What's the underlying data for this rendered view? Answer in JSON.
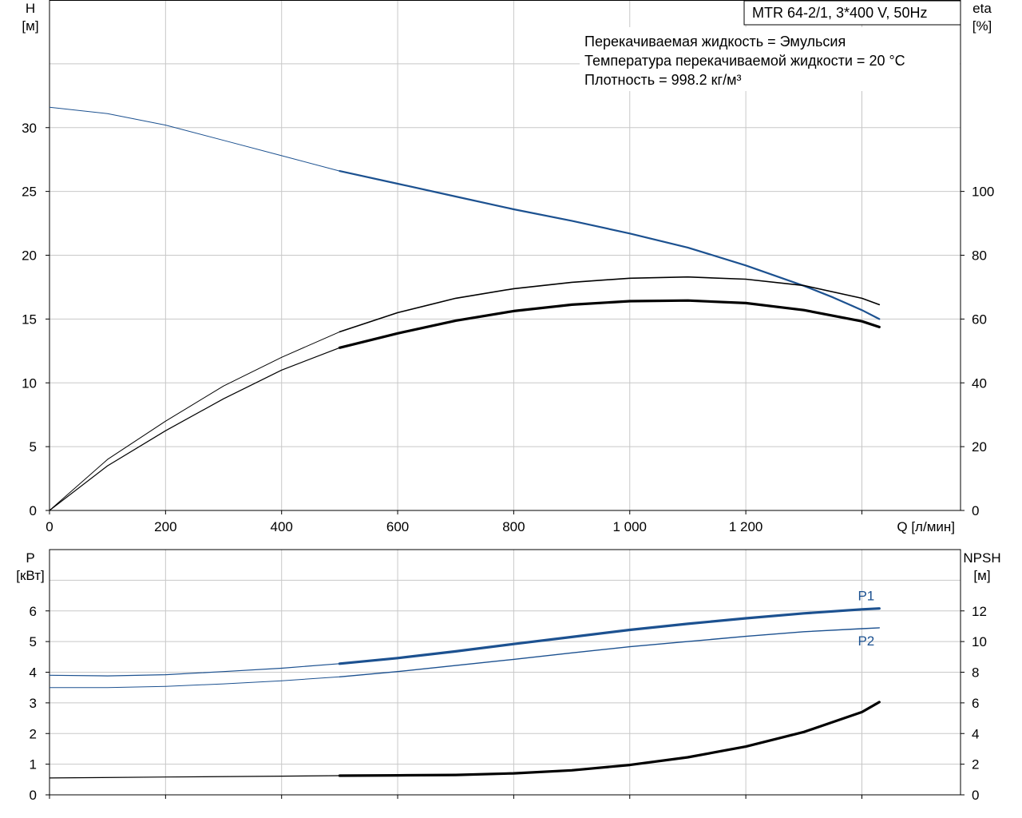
{
  "title": "MTR 64-2/1, 3*400 V, 50Hz",
  "info_lines": [
    "Перекачиваемая жидкость = Эмульсия",
    "Температура перекачиваемой жидкости = 20 °C",
    "Плотность = 998.2 кг/м³"
  ],
  "colors": {
    "blue": "#1c5190",
    "black": "#000000",
    "grid": "#c8c8c8"
  },
  "chart_data": [
    {
      "type": "line",
      "panel": "top",
      "xlabel": "Q [л/мин]",
      "ylabel_left": [
        "H",
        "[м]"
      ],
      "ylabel_right": [
        "eta",
        "[%]"
      ],
      "xlim": [
        0,
        1570
      ],
      "ylim_left": [
        0,
        40
      ],
      "ylim_right": [
        0,
        160
      ],
      "x_ticks": [
        0,
        200,
        400,
        600,
        800,
        1000,
        1200
      ],
      "x_tick_labels": [
        "0",
        "200",
        "400",
        "600",
        "800",
        "1 000",
        "1 200"
      ],
      "y_ticks_left": [
        0,
        5,
        10,
        15,
        20,
        25,
        30
      ],
      "y_ticks_right": [
        0,
        20,
        40,
        60,
        80,
        100
      ],
      "grid": true,
      "duty_range": [
        500,
        1430
      ],
      "series": [
        {
          "axis": "left",
          "color": "#1c5190",
          "style": "blue",
          "x": [
            0,
            100,
            200,
            300,
            400,
            500,
            600,
            700,
            800,
            900,
            1000,
            1100,
            1200,
            1300,
            1350,
            1400,
            1430
          ],
          "y": [
            31.6,
            31.1,
            30.2,
            29.0,
            27.8,
            26.6,
            25.6,
            24.6,
            23.6,
            22.7,
            21.7,
            20.6,
            19.2,
            17.6,
            16.7,
            15.7,
            15.0
          ]
        },
        {
          "axis": "right",
          "color": "#000000",
          "style": "black-thin",
          "x": [
            0,
            100,
            200,
            300,
            400,
            500,
            600,
            700,
            800,
            900,
            1000,
            1100,
            1200,
            1300,
            1400,
            1430
          ],
          "y": [
            0,
            16,
            28,
            39,
            48,
            56,
            62,
            66.5,
            69.5,
            71.5,
            72.8,
            73.2,
            72.5,
            70.5,
            66.5,
            64.5
          ]
        },
        {
          "axis": "right",
          "color": "#000000",
          "style": "black-thick",
          "x": [
            0,
            100,
            200,
            300,
            400,
            500,
            600,
            700,
            800,
            900,
            1000,
            1100,
            1200,
            1300,
            1400,
            1430
          ],
          "y": [
            0,
            14,
            25,
            35,
            44,
            51,
            55.5,
            59.5,
            62.5,
            64.5,
            65.6,
            65.8,
            65.0,
            62.8,
            59.3,
            57.5
          ]
        }
      ]
    },
    {
      "type": "line",
      "panel": "bottom",
      "ylabel_left": [
        "P",
        "[кВт]"
      ],
      "ylabel_right": [
        "NPSH",
        "[м]"
      ],
      "xlim": [
        0,
        1570
      ],
      "ylim_left": [
        0,
        8
      ],
      "ylim_right": [
        0,
        16
      ],
      "y_ticks_left": [
        0,
        1,
        2,
        3,
        4,
        5,
        6
      ],
      "y_ticks_right": [
        0,
        2,
        4,
        6,
        8,
        10,
        12
      ],
      "grid": true,
      "duty_range": [
        500,
        1430
      ],
      "series": [
        {
          "name": "P1",
          "axis": "left",
          "color": "#1c5190",
          "style": "blue-thick",
          "x": [
            0,
            100,
            200,
            300,
            400,
            500,
            600,
            700,
            800,
            900,
            1000,
            1100,
            1200,
            1300,
            1400,
            1430
          ],
          "y": [
            3.9,
            3.88,
            3.92,
            4.02,
            4.13,
            4.28,
            4.46,
            4.68,
            4.92,
            5.15,
            5.38,
            5.58,
            5.76,
            5.92,
            6.05,
            6.08
          ]
        },
        {
          "name": "P2",
          "axis": "left",
          "color": "#1c5190",
          "style": "blue-thin",
          "x": [
            0,
            100,
            200,
            300,
            400,
            500,
            600,
            700,
            800,
            900,
            1000,
            1100,
            1200,
            1300,
            1400,
            1430
          ],
          "y": [
            3.5,
            3.5,
            3.54,
            3.62,
            3.72,
            3.85,
            4.02,
            4.22,
            4.42,
            4.63,
            4.83,
            5.0,
            5.17,
            5.32,
            5.42,
            5.45
          ]
        },
        {
          "axis": "right",
          "color": "#000000",
          "style": "black-thick",
          "x": [
            0,
            200,
            400,
            500,
            600,
            700,
            800,
            900,
            1000,
            1100,
            1200,
            1300,
            1400,
            1430
          ],
          "y": [
            1.1,
            1.16,
            1.22,
            1.25,
            1.27,
            1.3,
            1.4,
            1.6,
            1.95,
            2.45,
            3.15,
            4.1,
            5.4,
            6.05
          ]
        }
      ]
    }
  ]
}
